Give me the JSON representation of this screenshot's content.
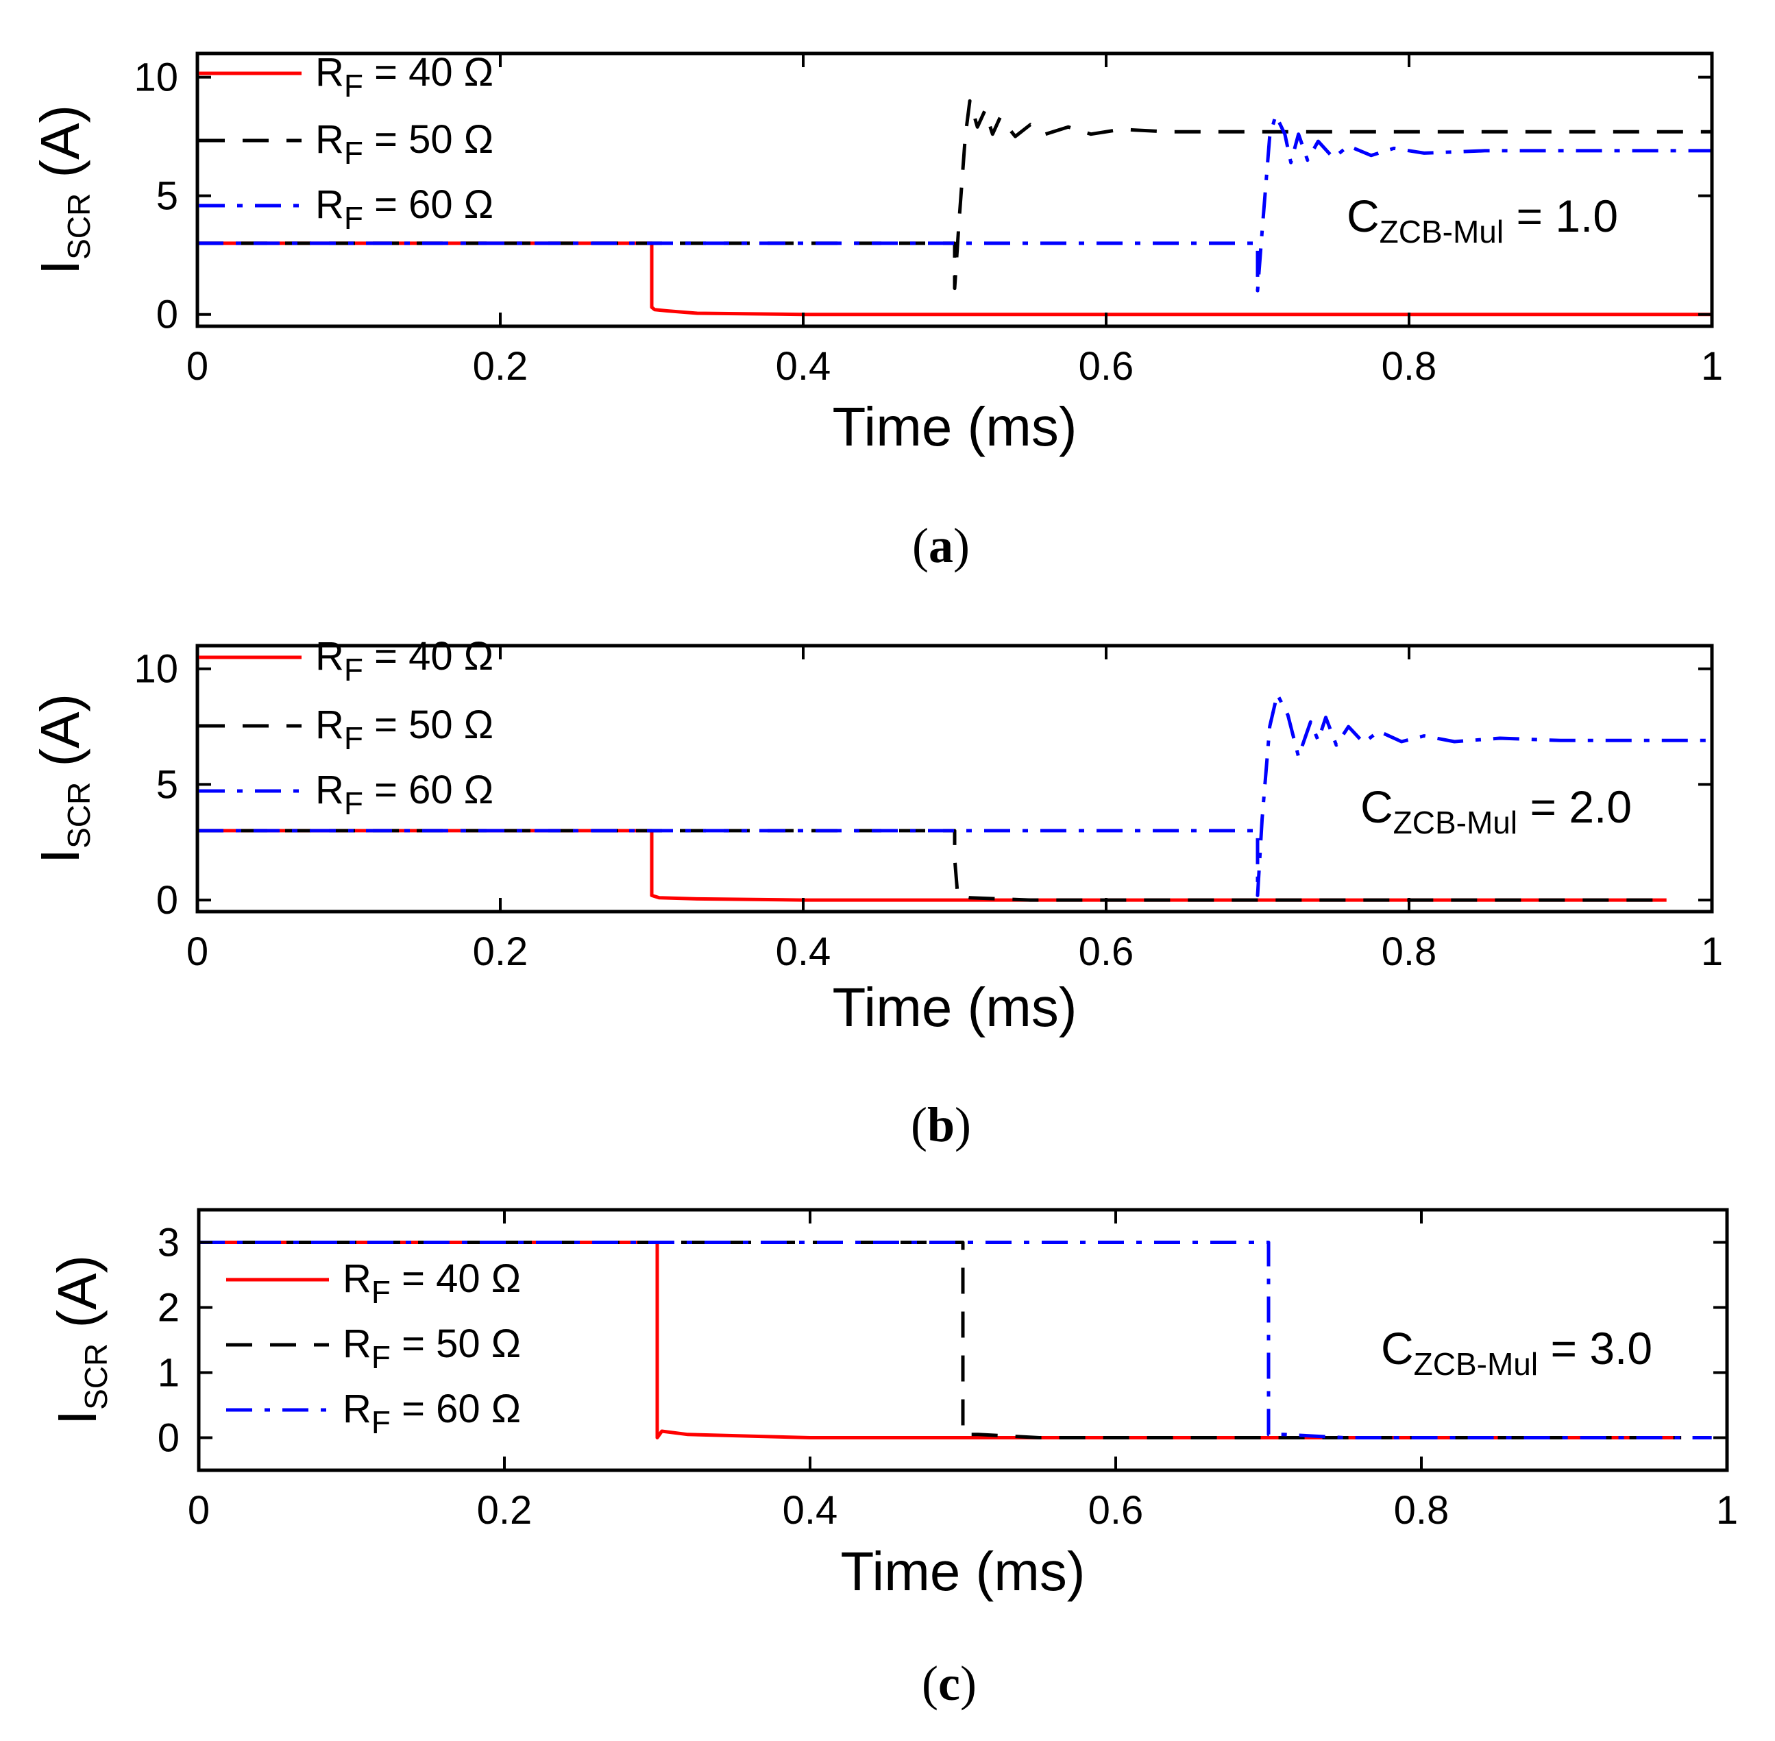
{
  "chart_data": [
    {
      "panel": "a",
      "type": "line",
      "xlabel": "Time (ms)",
      "ylabel": {
        "main": "I",
        "sub": "SCR",
        "tail": " (A)"
      },
      "xlim": [
        0,
        1
      ],
      "ylim": [
        -0.5,
        11
      ],
      "xticks": [
        0,
        0.2,
        0.4,
        0.6,
        0.8,
        1
      ],
      "xtick_labels": [
        "0",
        "0.2",
        "0.4",
        "0.6",
        "0.8",
        "1"
      ],
      "yticks": [
        0,
        5,
        10
      ],
      "ytick_labels": [
        "0",
        "5",
        "10"
      ],
      "annotation": {
        "main": "C",
        "sub": "ZCB-Mul",
        "tail": " = 1.0"
      },
      "caption": {
        "open": "(",
        "letter": "a",
        "close": ")"
      },
      "legend": [
        {
          "main": "R",
          "sub": "F",
          "tail": " = 40 Ω"
        },
        {
          "main": "R",
          "sub": "F",
          "tail": " = 50 Ω"
        },
        {
          "main": "R",
          "sub": "F",
          "tail": " = 60 Ω"
        }
      ],
      "series": [
        {
          "name": "RF = 40 Ω",
          "color": "#ff0000",
          "dash": "solid",
          "points": [
            [
              0,
              3
            ],
            [
              0.3,
              3
            ],
            [
              0.3,
              0.3
            ],
            [
              0.302,
              0.2
            ],
            [
              0.31,
              0.15
            ],
            [
              0.33,
              0.05
            ],
            [
              0.4,
              0
            ],
            [
              1,
              0
            ]
          ]
        },
        {
          "name": "RF = 50 Ω",
          "color": "#000000",
          "dash": "dash",
          "points": [
            [
              0,
              3
            ],
            [
              0.5,
              3
            ],
            [
              0.5,
              1.1
            ],
            [
              0.503,
              4
            ],
            [
              0.507,
              7.5
            ],
            [
              0.51,
              9
            ],
            [
              0.515,
              7.9
            ],
            [
              0.52,
              8.6
            ],
            [
              0.525,
              7.6
            ],
            [
              0.53,
              8.3
            ],
            [
              0.54,
              7.5
            ],
            [
              0.55,
              8.0
            ],
            [
              0.56,
              7.6
            ],
            [
              0.575,
              7.9
            ],
            [
              0.59,
              7.6
            ],
            [
              0.61,
              7.8
            ],
            [
              0.64,
              7.7
            ],
            [
              1,
              7.7
            ]
          ]
        },
        {
          "name": "RF = 60 Ω",
          "color": "#0000ff",
          "dash": "dashdot",
          "points": [
            [
              0,
              3
            ],
            [
              0.7,
              3
            ],
            [
              0.7,
              1.0
            ],
            [
              0.703,
              3.5
            ],
            [
              0.708,
              7.5
            ],
            [
              0.712,
              8.4
            ],
            [
              0.718,
              7.6
            ],
            [
              0.722,
              6.4
            ],
            [
              0.727,
              7.6
            ],
            [
              0.733,
              6.5
            ],
            [
              0.74,
              7.3
            ],
            [
              0.75,
              6.6
            ],
            [
              0.76,
              7.1
            ],
            [
              0.775,
              6.7
            ],
            [
              0.79,
              7.0
            ],
            [
              0.81,
              6.8
            ],
            [
              0.85,
              6.9
            ],
            [
              1,
              6.9
            ]
          ]
        }
      ]
    },
    {
      "panel": "b",
      "type": "line",
      "xlabel": "Time (ms)",
      "ylabel": {
        "main": "I",
        "sub": "SCR",
        "tail": " (A)"
      },
      "xlim": [
        0,
        1
      ],
      "ylim": [
        -0.5,
        11
      ],
      "xticks": [
        0,
        0.2,
        0.4,
        0.6,
        0.8,
        1
      ],
      "xtick_labels": [
        "0",
        "0.2",
        "0.4",
        "0.6",
        "0.8",
        "1"
      ],
      "yticks": [
        0,
        5,
        10
      ],
      "ytick_labels": [
        "0",
        "5",
        "10"
      ],
      "annotation": {
        "main": "C",
        "sub": "ZCB-Mul",
        "tail": " = 2.0"
      },
      "caption": {
        "open": "(",
        "letter": "b",
        "close": ")"
      },
      "legend": [
        {
          "main": "R",
          "sub": "F",
          "tail": " = 40 Ω"
        },
        {
          "main": "R",
          "sub": "F",
          "tail": " = 50 Ω"
        },
        {
          "main": "R",
          "sub": "F",
          "tail": " = 60 Ω"
        }
      ],
      "series": [
        {
          "name": "RF = 40 Ω",
          "color": "#ff0000",
          "dash": "solid",
          "points": [
            [
              0,
              3
            ],
            [
              0.3,
              3
            ],
            [
              0.3,
              0.2
            ],
            [
              0.305,
              0.1
            ],
            [
              0.33,
              0.05
            ],
            [
              0.4,
              0
            ],
            [
              0.97,
              0
            ]
          ]
        },
        {
          "name": "RF = 50 Ω",
          "color": "#000000",
          "dash": "dash",
          "points": [
            [
              0,
              3
            ],
            [
              0.5,
              3
            ],
            [
              0.5,
              1.8
            ],
            [
              0.502,
              0.2
            ],
            [
              0.51,
              0.1
            ],
            [
              0.55,
              0
            ],
            [
              0.97,
              0
            ]
          ]
        },
        {
          "name": "RF = 60 Ω",
          "color": "#0000ff",
          "dash": "dashdot",
          "points": [
            [
              0,
              3
            ],
            [
              0.7,
              3
            ],
            [
              0.7,
              0.2
            ],
            [
              0.703,
              3.5
            ],
            [
              0.708,
              7.5
            ],
            [
              0.713,
              8.9
            ],
            [
              0.72,
              8.0
            ],
            [
              0.727,
              6.2
            ],
            [
              0.735,
              7.7
            ],
            [
              0.74,
              6.9
            ],
            [
              0.745,
              7.9
            ],
            [
              0.752,
              6.7
            ],
            [
              0.76,
              7.5
            ],
            [
              0.77,
              6.8
            ],
            [
              0.78,
              7.3
            ],
            [
              0.795,
              6.85
            ],
            [
              0.81,
              7.1
            ],
            [
              0.83,
              6.85
            ],
            [
              0.86,
              7.0
            ],
            [
              0.9,
              6.9
            ],
            [
              1,
              6.9
            ]
          ]
        }
      ]
    },
    {
      "panel": "c",
      "type": "line",
      "xlabel": "Time (ms)",
      "ylabel": {
        "main": "I",
        "sub": "SCR",
        "tail": " (A)"
      },
      "xlim": [
        0,
        1
      ],
      "ylim": [
        -0.5,
        3.5
      ],
      "xticks": [
        0,
        0.2,
        0.4,
        0.6,
        0.8,
        1
      ],
      "xtick_labels": [
        "0",
        "0.2",
        "0.4",
        "0.6",
        "0.8",
        "1"
      ],
      "yticks": [
        0,
        1,
        2,
        3
      ],
      "ytick_labels": [
        "0",
        "1",
        "2",
        "3"
      ],
      "annotation": {
        "main": "C",
        "sub": "ZCB-Mul",
        "tail": " = 3.0"
      },
      "caption": {
        "open": "(",
        "letter": "c",
        "close": ")"
      },
      "legend": [
        {
          "main": "R",
          "sub": "F",
          "tail": " = 40 Ω"
        },
        {
          "main": "R",
          "sub": "F",
          "tail": " = 50 Ω"
        },
        {
          "main": "R",
          "sub": "F",
          "tail": " = 60 Ω"
        }
      ],
      "series": [
        {
          "name": "RF = 40 Ω",
          "color": "#ff0000",
          "dash": "solid",
          "points": [
            [
              0,
              3
            ],
            [
              0.3,
              3
            ],
            [
              0.3,
              0
            ],
            [
              0.303,
              0.1
            ],
            [
              0.32,
              0.05
            ],
            [
              0.4,
              0
            ],
            [
              0.97,
              0
            ]
          ]
        },
        {
          "name": "RF = 50 Ω",
          "color": "#000000",
          "dash": "dash",
          "points": [
            [
              0,
              3
            ],
            [
              0.5,
              3
            ],
            [
              0.5,
              0.05
            ],
            [
              0.51,
              0.05
            ],
            [
              0.55,
              0
            ],
            [
              0.97,
              0
            ]
          ]
        },
        {
          "name": "RF = 60 Ω",
          "color": "#0000ff",
          "dash": "dashdot",
          "points": [
            [
              0,
              3
            ],
            [
              0.7,
              3
            ],
            [
              0.7,
              0.05
            ],
            [
              0.71,
              0.05
            ],
            [
              0.75,
              0
            ],
            [
              0.99,
              0
            ]
          ]
        }
      ]
    }
  ]
}
